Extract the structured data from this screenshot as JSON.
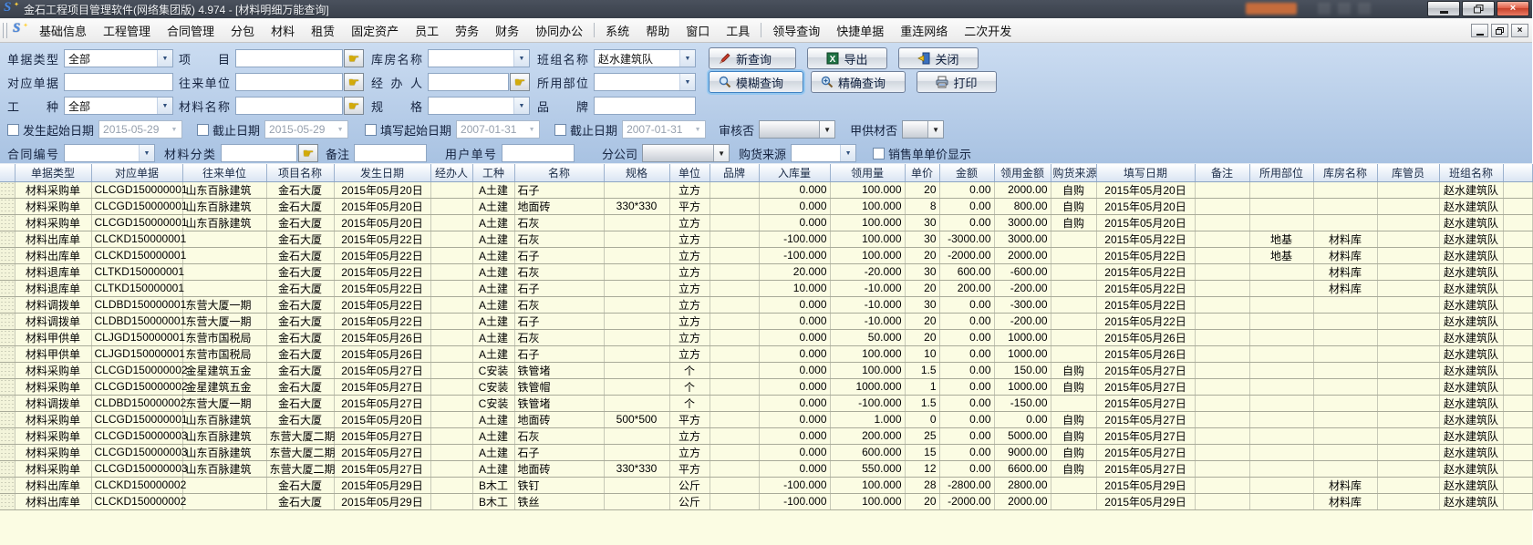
{
  "window": {
    "title": "金石工程项目管理软件(网络集团版) 4.974 - [材料明细万能查询]"
  },
  "menu": {
    "group1": [
      "基础信息",
      "工程管理",
      "合同管理",
      "分包",
      "材料",
      "租赁",
      "固定资产",
      "员工",
      "劳务",
      "财务",
      "协同办公"
    ],
    "group2": [
      "系统",
      "帮助",
      "窗口",
      "工具"
    ],
    "group3": [
      "领导查询",
      "快捷单据",
      "重连网络",
      "二次开发"
    ]
  },
  "filters": {
    "doc_type_label": "单据类型",
    "doc_type_value": "全部",
    "project_label": "项目",
    "warehouse_label": "库房名称",
    "team_label": "班组名称",
    "team_value": "赵水建筑队",
    "ref_doc_label": "对应单据",
    "partner_label": "往来单位",
    "agent_label": "经办人",
    "use_part_label": "所用部位",
    "work_type_label": "工种",
    "work_type_value": "全部",
    "material_name_label": "材料名称",
    "spec_label": "规格",
    "brand_label": "品牌",
    "occur_start_label": "发生起始日期",
    "occur_start_value": "2015-05-29",
    "occur_end_label": "截止日期",
    "occur_end_value": "2015-05-29",
    "fill_start_label": "填写起始日期",
    "fill_start_value": "2007-01-31",
    "fill_end_label": "截止日期",
    "fill_end_value": "2007-01-31",
    "audit_label": "审核否",
    "owner_supplied_label": "甲供材否",
    "contract_no_label": "合同编号",
    "material_class_label": "材料分类",
    "remark_label": "备注",
    "user_doc_label": "用户单号",
    "branch_label": "分公司",
    "purchase_source_label": "购货来源",
    "sale_price_label": "销售单单价显示"
  },
  "buttons": {
    "new_query": "新查询",
    "export": "导出",
    "close": "关闭",
    "fuzzy_query": "模糊查询",
    "exact_query": "精确查询",
    "print": "打印"
  },
  "table": {
    "columns": [
      "单据类型",
      "对应单据",
      "往来单位",
      "项目名称",
      "发生日期",
      "经办人",
      "工种",
      "名称",
      "规格",
      "单位",
      "品牌",
      "入库量",
      "领用量",
      "单价",
      "金额",
      "领用金额",
      "购货来源",
      "填写日期",
      "备注",
      "所用部位",
      "库房名称",
      "库管员",
      "班组名称"
    ],
    "rows": [
      [
        "材料采购单",
        "CLCGD150000001",
        "山东百脉建筑",
        "金石大厦",
        "2015年05月20日",
        "",
        "A土建",
        "石子",
        "",
        "立方",
        "",
        "0.000",
        "100.000",
        "20",
        "0.00",
        "2000.00",
        "自购",
        "2015年05月20日",
        "",
        "",
        "",
        "",
        "赵水建筑队"
      ],
      [
        "材料采购单",
        "CLCGD150000001",
        "山东百脉建筑",
        "金石大厦",
        "2015年05月20日",
        "",
        "A土建",
        "地面砖",
        "330*330",
        "平方",
        "",
        "0.000",
        "100.000",
        "8",
        "0.00",
        "800.00",
        "自购",
        "2015年05月20日",
        "",
        "",
        "",
        "",
        "赵水建筑队"
      ],
      [
        "材料采购单",
        "CLCGD150000001",
        "山东百脉建筑",
        "金石大厦",
        "2015年05月20日",
        "",
        "A土建",
        "石灰",
        "",
        "立方",
        "",
        "0.000",
        "100.000",
        "30",
        "0.00",
        "3000.00",
        "自购",
        "2015年05月20日",
        "",
        "",
        "",
        "",
        "赵水建筑队"
      ],
      [
        "材料出库单",
        "CLCKD150000001",
        "",
        "金石大厦",
        "2015年05月22日",
        "",
        "A土建",
        "石灰",
        "",
        "立方",
        "",
        "-100.000",
        "100.000",
        "30",
        "-3000.00",
        "3000.00",
        "",
        "2015年05月22日",
        "",
        "地基",
        "材料库",
        "",
        "赵水建筑队"
      ],
      [
        "材料出库单",
        "CLCKD150000001",
        "",
        "金石大厦",
        "2015年05月22日",
        "",
        "A土建",
        "石子",
        "",
        "立方",
        "",
        "-100.000",
        "100.000",
        "20",
        "-2000.00",
        "2000.00",
        "",
        "2015年05月22日",
        "",
        "地基",
        "材料库",
        "",
        "赵水建筑队"
      ],
      [
        "材料退库单",
        "CLTKD150000001",
        "",
        "金石大厦",
        "2015年05月22日",
        "",
        "A土建",
        "石灰",
        "",
        "立方",
        "",
        "20.000",
        "-20.000",
        "30",
        "600.00",
        "-600.00",
        "",
        "2015年05月22日",
        "",
        "",
        "材料库",
        "",
        "赵水建筑队"
      ],
      [
        "材料退库单",
        "CLTKD150000001",
        "",
        "金石大厦",
        "2015年05月22日",
        "",
        "A土建",
        "石子",
        "",
        "立方",
        "",
        "10.000",
        "-10.000",
        "20",
        "200.00",
        "-200.00",
        "",
        "2015年05月22日",
        "",
        "",
        "材料库",
        "",
        "赵水建筑队"
      ],
      [
        "材料调拨单",
        "CLDBD150000001",
        "东营大厦一期",
        "金石大厦",
        "2015年05月22日",
        "",
        "A土建",
        "石灰",
        "",
        "立方",
        "",
        "0.000",
        "-10.000",
        "30",
        "0.00",
        "-300.00",
        "",
        "2015年05月22日",
        "",
        "",
        "",
        "",
        "赵水建筑队"
      ],
      [
        "材料调拨单",
        "CLDBD150000001",
        "东营大厦一期",
        "金石大厦",
        "2015年05月22日",
        "",
        "A土建",
        "石子",
        "",
        "立方",
        "",
        "0.000",
        "-10.000",
        "20",
        "0.00",
        "-200.00",
        "",
        "2015年05月22日",
        "",
        "",
        "",
        "",
        "赵水建筑队"
      ],
      [
        "材料甲供单",
        "CLJGD150000001",
        "东营市国税局",
        "金石大厦",
        "2015年05月26日",
        "",
        "A土建",
        "石灰",
        "",
        "立方",
        "",
        "0.000",
        "50.000",
        "20",
        "0.00",
        "1000.00",
        "",
        "2015年05月26日",
        "",
        "",
        "",
        "",
        "赵水建筑队"
      ],
      [
        "材料甲供单",
        "CLJGD150000001",
        "东营市国税局",
        "金石大厦",
        "2015年05月26日",
        "",
        "A土建",
        "石子",
        "",
        "立方",
        "",
        "0.000",
        "100.000",
        "10",
        "0.00",
        "1000.00",
        "",
        "2015年05月26日",
        "",
        "",
        "",
        "",
        "赵水建筑队"
      ],
      [
        "材料采购单",
        "CLCGD150000002",
        "金星建筑五金",
        "金石大厦",
        "2015年05月27日",
        "",
        "C安装",
        "铁管堵",
        "",
        "个",
        "",
        "0.000",
        "100.000",
        "1.5",
        "0.00",
        "150.00",
        "自购",
        "2015年05月27日",
        "",
        "",
        "",
        "",
        "赵水建筑队"
      ],
      [
        "材料采购单",
        "CLCGD150000002",
        "金星建筑五金",
        "金石大厦",
        "2015年05月27日",
        "",
        "C安装",
        "铁管帽",
        "",
        "个",
        "",
        "0.000",
        "1000.000",
        "1",
        "0.00",
        "1000.00",
        "自购",
        "2015年05月27日",
        "",
        "",
        "",
        "",
        "赵水建筑队"
      ],
      [
        "材料调拨单",
        "CLDBD150000002",
        "东营大厦一期",
        "金石大厦",
        "2015年05月27日",
        "",
        "C安装",
        "铁管堵",
        "",
        "个",
        "",
        "0.000",
        "-100.000",
        "1.5",
        "0.00",
        "-150.00",
        "",
        "2015年05月27日",
        "",
        "",
        "",
        "",
        "赵水建筑队"
      ],
      [
        "材料采购单",
        "CLCGD150000001",
        "山东百脉建筑",
        "金石大厦",
        "2015年05月20日",
        "",
        "A土建",
        "地面砖",
        "500*500",
        "平方",
        "",
        "0.000",
        "1.000",
        "0",
        "0.00",
        "0.00",
        "自购",
        "2015年05月27日",
        "",
        "",
        "",
        "",
        "赵水建筑队"
      ],
      [
        "材料采购单",
        "CLCGD150000003",
        "山东百脉建筑",
        "东营大厦二期",
        "2015年05月27日",
        "",
        "A土建",
        "石灰",
        "",
        "立方",
        "",
        "0.000",
        "200.000",
        "25",
        "0.00",
        "5000.00",
        "自购",
        "2015年05月27日",
        "",
        "",
        "",
        "",
        "赵水建筑队"
      ],
      [
        "材料采购单",
        "CLCGD150000003",
        "山东百脉建筑",
        "东营大厦二期",
        "2015年05月27日",
        "",
        "A土建",
        "石子",
        "",
        "立方",
        "",
        "0.000",
        "600.000",
        "15",
        "0.00",
        "9000.00",
        "自购",
        "2015年05月27日",
        "",
        "",
        "",
        "",
        "赵水建筑队"
      ],
      [
        "材料采购单",
        "CLCGD150000003",
        "山东百脉建筑",
        "东营大厦二期",
        "2015年05月27日",
        "",
        "A土建",
        "地面砖",
        "330*330",
        "平方",
        "",
        "0.000",
        "550.000",
        "12",
        "0.00",
        "6600.00",
        "自购",
        "2015年05月27日",
        "",
        "",
        "",
        "",
        "赵水建筑队"
      ],
      [
        "材料出库单",
        "CLCKD150000002",
        "",
        "金石大厦",
        "2015年05月29日",
        "",
        "B木工",
        "铁钉",
        "",
        "公斤",
        "",
        "-100.000",
        "100.000",
        "28",
        "-2800.00",
        "2800.00",
        "",
        "2015年05月29日",
        "",
        "",
        "材料库",
        "",
        "赵水建筑队"
      ],
      [
        "材料出库单",
        "CLCKD150000002",
        "",
        "金石大厦",
        "2015年05月29日",
        "",
        "B木工",
        "铁丝",
        "",
        "公斤",
        "",
        "-100.000",
        "100.000",
        "20",
        "-2000.00",
        "2000.00",
        "",
        "2015年05月29日",
        "",
        "",
        "材料库",
        "",
        "赵水建筑队"
      ]
    ]
  }
}
